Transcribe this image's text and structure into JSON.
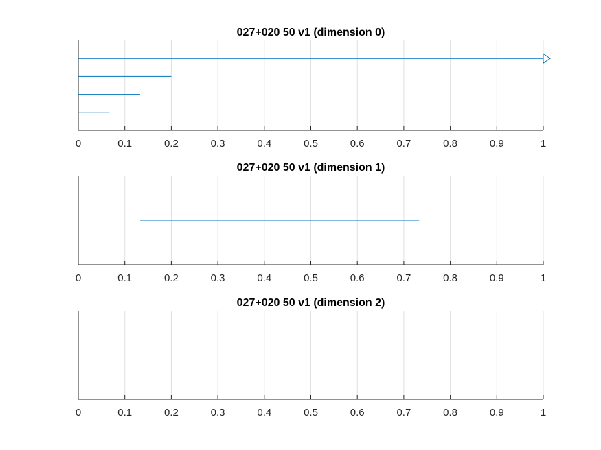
{
  "chart_data": [
    {
      "type": "barcode",
      "title": "027+020 50 v1 (dimension 0)",
      "xlabel": "",
      "ylabel": "",
      "xlim": [
        0,
        1
      ],
      "xticks": [
        "0",
        "0.1",
        "0.2",
        "0.3",
        "0.4",
        "0.5",
        "0.6",
        "0.7",
        "0.8",
        "0.9",
        "1"
      ],
      "grid": true,
      "bar_color": "#0072bd",
      "intervals": [
        {
          "birth": 0,
          "death": 1,
          "infinite": true
        },
        {
          "birth": 0,
          "death": 0.2,
          "infinite": false
        },
        {
          "birth": 0,
          "death": 0.133,
          "infinite": false
        },
        {
          "birth": 0,
          "death": 0.067,
          "infinite": false
        }
      ]
    },
    {
      "type": "barcode",
      "title": "027+020 50 v1 (dimension 1)",
      "xlabel": "",
      "ylabel": "",
      "xlim": [
        0,
        1
      ],
      "xticks": [
        "0",
        "0.1",
        "0.2",
        "0.3",
        "0.4",
        "0.5",
        "0.6",
        "0.7",
        "0.8",
        "0.9",
        "1"
      ],
      "grid": true,
      "bar_color": "#0072bd",
      "intervals": [
        {
          "birth": 0.133,
          "death": 0.733,
          "infinite": false
        }
      ]
    },
    {
      "type": "barcode",
      "title": "027+020 50 v1 (dimension 2)",
      "xlabel": "",
      "ylabel": "",
      "xlim": [
        0,
        1
      ],
      "xticks": [
        "0",
        "0.1",
        "0.2",
        "0.3",
        "0.4",
        "0.5",
        "0.6",
        "0.7",
        "0.8",
        "0.9",
        "1"
      ],
      "grid": true,
      "bar_color": "#0072bd",
      "intervals": []
    }
  ]
}
